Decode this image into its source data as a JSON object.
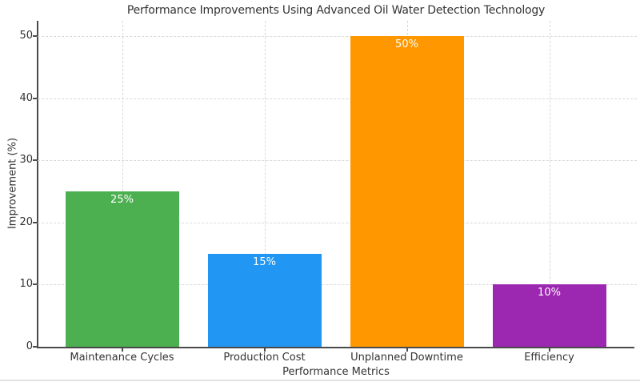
{
  "chart_data": {
    "type": "bar",
    "title": "Performance Improvements Using Advanced Oil Water Detection Technology",
    "xlabel": "Performance Metrics",
    "ylabel": "Improvement (%)",
    "categories": [
      "Maintenance Cycles",
      "Production Cost",
      "Unplanned Downtime",
      "Efficiency"
    ],
    "values": [
      25,
      15,
      50,
      10
    ],
    "bar_labels": [
      "25%",
      "15%",
      "50%",
      "10%"
    ],
    "series_colors": [
      "#4caf50",
      "#2196f3",
      "#ff9800",
      "#9c27b0"
    ],
    "bar_label_color": "#ffffff",
    "y_ticks": [
      0,
      10,
      20,
      30,
      40,
      50
    ],
    "ylim": [
      0,
      52.5
    ],
    "grid": {
      "horizontal": true,
      "vertical": true,
      "style": "dashed",
      "color": "#d8d8d8"
    },
    "legend": "none",
    "axis_color": "#4a4a4a",
    "text_color": "#333333",
    "background_color": "#ffffff"
  }
}
